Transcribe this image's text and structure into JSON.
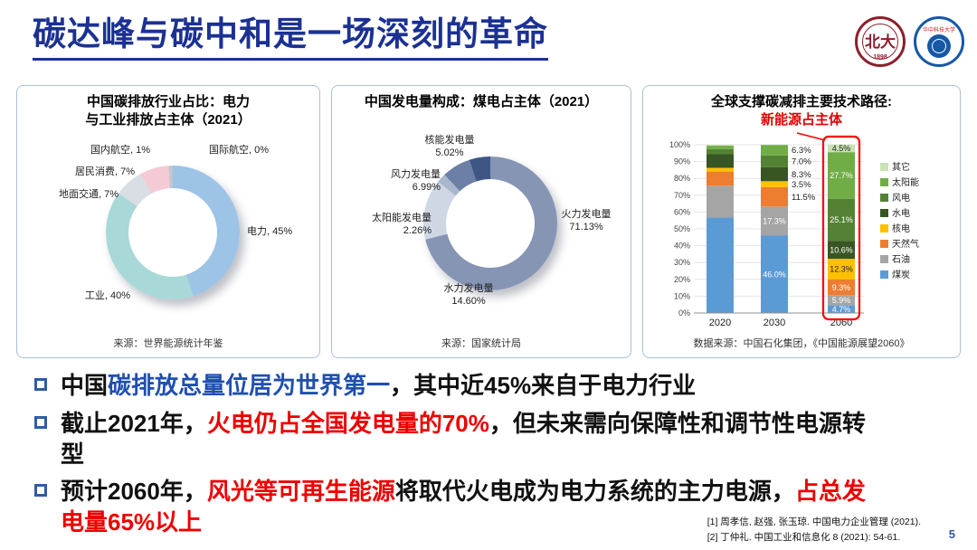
{
  "slide": {
    "title": "碳达峰与碳中和是一场深刻的革命",
    "page_number": "5"
  },
  "logos": {
    "pku_text": "北大",
    "pku_year": "1898",
    "hust_text": "华中科技大学"
  },
  "chart_data": [
    {
      "type": "pie",
      "donut": true,
      "title": "中国碳排放行业占比：电力\n与工业排放占主体（2021）",
      "source": "来源：世界能源统计年鉴",
      "slices": [
        {
          "label": "电力",
          "value": 45,
          "display": "电力, 45%",
          "color": "#9DC3E6"
        },
        {
          "label": "工业",
          "value": 40,
          "display": "工业, 40%",
          "color": "#A9D8D8"
        },
        {
          "label": "地面交通",
          "value": 7,
          "display": "地面交通, 7%",
          "color": "#D9DEE4"
        },
        {
          "label": "居民消费",
          "value": 7,
          "display": "居民消费, 7%",
          "color": "#F4CBD4"
        },
        {
          "label": "国内航空",
          "value": 1,
          "display": "国内航空, 1%",
          "color": "#BFC7D1"
        },
        {
          "label": "国际航空",
          "value": 0,
          "display": "国际航空, 0%",
          "color": "#E8ECEF"
        }
      ]
    },
    {
      "type": "pie",
      "donut": true,
      "title": "中国发电量构成：煤电占主体（2021）",
      "source": "来源：国家统计局",
      "slices": [
        {
          "label": "火力发电量",
          "value": 71.13,
          "display": "火力发电量\n71.13%",
          "color": "#8795B5"
        },
        {
          "label": "水力发电量",
          "value": 14.6,
          "display": "水力发电量\n14.60%",
          "color": "#CFD6E4"
        },
        {
          "label": "太阳能发电量",
          "value": 2.26,
          "display": "太阳能发电量\n2.26%",
          "color": "#AAB6CC"
        },
        {
          "label": "风力发电量",
          "value": 6.99,
          "display": "风力发电量\n6.99%",
          "color": "#6C7FA6"
        },
        {
          "label": "核能发电量",
          "value": 5.02,
          "display": "核能发电量\n5.02%",
          "color": "#3E5684"
        }
      ]
    },
    {
      "type": "bar",
      "stacked": true,
      "percent": true,
      "title": "全球支撑碳减排主要技术路径:",
      "subtitle": "新能源占主体",
      "source": "数据来源：中国石化集团，《中国能源展望2060》",
      "categories": [
        "2020",
        "2030",
        "2060"
      ],
      "ylim": [
        0,
        100
      ],
      "ytick_step": 10,
      "highlight_category": "2060",
      "labeled_categories": [
        "2030",
        "2060"
      ],
      "legend_position": "right",
      "series": [
        {
          "name": "煤炭",
          "color": "#5B9BD5",
          "values": [
            56.8,
            46.0,
            4.7
          ]
        },
        {
          "name": "石油",
          "color": "#A5A5A5",
          "values": [
            18.9,
            17.3,
            5.9
          ]
        },
        {
          "name": "天然气",
          "color": "#ED7D31",
          "values": [
            8.4,
            11.5,
            9.3
          ]
        },
        {
          "name": "核电",
          "color": "#FFC000",
          "values": [
            2.2,
            3.5,
            12.3
          ]
        },
        {
          "name": "水电",
          "color": "#375623",
          "values": [
            8.1,
            8.3,
            10.6
          ]
        },
        {
          "name": "风电",
          "color": "#548235",
          "values": [
            3.1,
            7.0,
            25.1
          ]
        },
        {
          "name": "太阳能",
          "color": "#70AD47",
          "values": [
            1.9,
            6.3,
            27.7
          ]
        },
        {
          "name": "其它",
          "color": "#C9E2B3",
          "values": [
            0.6,
            0.1,
            4.5
          ]
        }
      ]
    }
  ],
  "bullets": [
    {
      "segments": [
        {
          "text": "中国",
          "style": "normal"
        },
        {
          "text": "碳排放总量位居为世界第一",
          "style": "blue"
        },
        {
          "text": "，其中近45%来自于电力行业",
          "style": "normal"
        }
      ]
    },
    {
      "segments": [
        {
          "text": "截止2021年，",
          "style": "normal"
        },
        {
          "text": "火电仍占全国发电量的70%",
          "style": "red"
        },
        {
          "text": "，但未来需向保障性和调节性电源转型",
          "style": "normal"
        }
      ]
    },
    {
      "segments": [
        {
          "text": "预计2060年，",
          "style": "normal"
        },
        {
          "text": "风光等可再生能源",
          "style": "red"
        },
        {
          "text": "将取代火电成为电力系统的主力电源，",
          "style": "normal"
        },
        {
          "text": "占总发电量65%以上",
          "style": "red"
        }
      ]
    }
  ],
  "references": [
    "[1] 周孝信, 赵强, 张玉琼. 中国电力企业管理 (2021).",
    "[2] 丁仲礼. 中国工业和信息化 8 (2021): 54-61."
  ],
  "colors": {
    "title_blue": "#1B3193",
    "highlight_blue": "#1F4FAF",
    "highlight_red": "#EC0000",
    "panel_border": "#A9C0DC",
    "red_box": "#FF0000"
  }
}
